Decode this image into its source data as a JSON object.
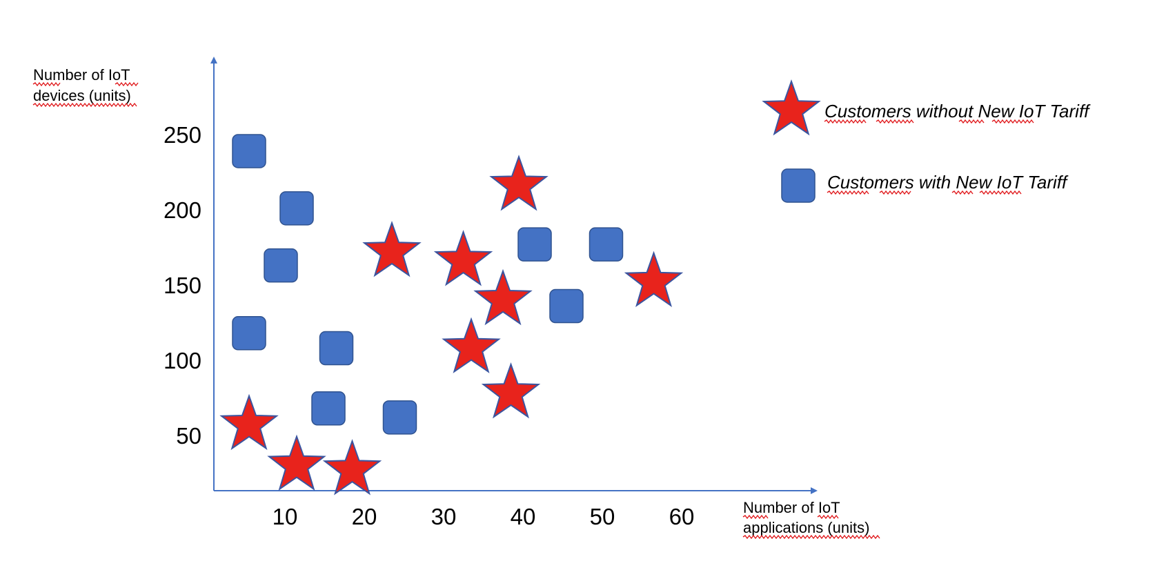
{
  "chart_data": {
    "type": "scatter",
    "xlabel_lines": [
      "Number of IoT",
      "applications (units)"
    ],
    "ylabel_lines": [
      "Number of IoT",
      "devices (units)"
    ],
    "x_ticks": [
      "10",
      "20",
      "30",
      "40",
      "50",
      "60"
    ],
    "y_ticks": [
      "250",
      "200",
      "150",
      "100",
      "50"
    ],
    "series": [
      {
        "name": "Customers without New IoT Tariff",
        "marker": "star",
        "color": "#E8231C",
        "stroke": "#3A55A0",
        "points": [
          {
            "x": 6,
            "y": 57
          },
          {
            "x": 12,
            "y": 30
          },
          {
            "x": 19,
            "y": 27
          },
          {
            "x": 24,
            "y": 172
          },
          {
            "x": 33,
            "y": 166
          },
          {
            "x": 34,
            "y": 108
          },
          {
            "x": 38,
            "y": 140
          },
          {
            "x": 39,
            "y": 78
          },
          {
            "x": 40,
            "y": 216
          },
          {
            "x": 57,
            "y": 152
          }
        ]
      },
      {
        "name": "Customers with New IoT Tariff",
        "marker": "rounded-square",
        "color": "#4472C4",
        "stroke": "#2F528F",
        "points": [
          {
            "x": 6,
            "y": 239
          },
          {
            "x": 12,
            "y": 201
          },
          {
            "x": 10,
            "y": 163
          },
          {
            "x": 6,
            "y": 118
          },
          {
            "x": 17,
            "y": 108
          },
          {
            "x": 16,
            "y": 68
          },
          {
            "x": 25,
            "y": 62
          },
          {
            "x": 42,
            "y": 177
          },
          {
            "x": 51,
            "y": 177
          },
          {
            "x": 46,
            "y": 136
          }
        ]
      }
    ]
  }
}
